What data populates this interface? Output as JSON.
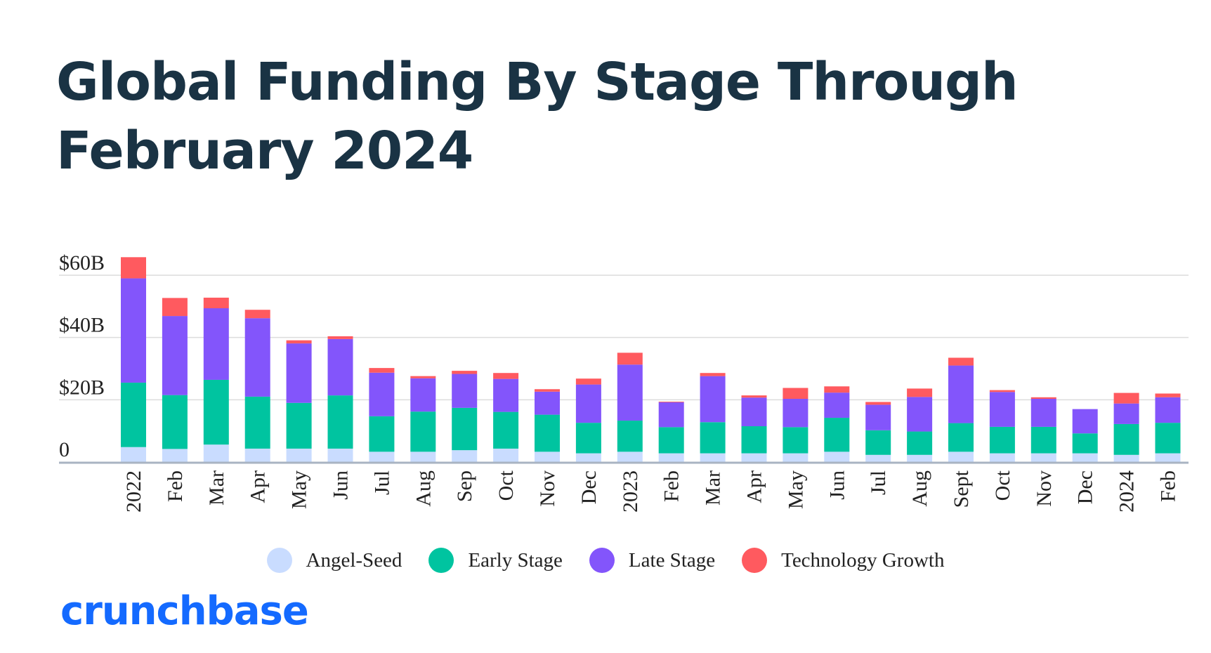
{
  "title_line1": "Global Funding By Stage Through",
  "title_line2": "February 2024",
  "logo_text": "crunchbase",
  "chart_data": {
    "type": "bar",
    "stacked": true,
    "categories": [
      "2022",
      "Feb",
      "Mar",
      "Apr",
      "May",
      "Jun",
      "Jul",
      "Aug",
      "Sep",
      "Oct",
      "Nov",
      "Dec",
      "2023",
      "Feb",
      "Mar",
      "Apr",
      "May",
      "Jun",
      "Jul",
      "Aug",
      "Sept",
      "Oct",
      "Nov",
      "Dec",
      "2024",
      "Feb"
    ],
    "series": [
      {
        "name": "Angel-Seed",
        "color": "#c9dcff",
        "values": [
          4.8,
          4.2,
          5.6,
          4.3,
          4.3,
          4.3,
          3.3,
          3.3,
          3.8,
          4.3,
          3.3,
          2.8,
          3.3,
          2.8,
          2.8,
          2.8,
          2.8,
          3.3,
          2.3,
          2.3,
          3.3,
          2.8,
          2.8,
          2.8,
          2.3,
          2.8
        ]
      },
      {
        "name": "Early Stage",
        "color": "#00c4a0",
        "values": [
          20.7,
          17.3,
          20.8,
          16.7,
          14.7,
          17.1,
          11.4,
          12.9,
          13.6,
          11.8,
          11.9,
          9.8,
          10.0,
          8.4,
          10.0,
          8.7,
          8.4,
          10.9,
          7.9,
          7.5,
          9.2,
          8.5,
          8.5,
          6.4,
          9.9,
          9.8
        ]
      },
      {
        "name": "Late Stage",
        "color": "#8355fb",
        "values": [
          33.5,
          25.4,
          23.0,
          25.2,
          19.1,
          18.1,
          14.0,
          10.7,
          10.9,
          10.6,
          7.4,
          12.3,
          18.0,
          8.0,
          14.8,
          9.2,
          9.1,
          8.1,
          8.2,
          11.1,
          18.5,
          11.2,
          9.0,
          7.8,
          6.6,
          8.2
        ]
      },
      {
        "name": "Technology Growth",
        "color": "#ff5a5f",
        "values": [
          6.8,
          5.8,
          3.4,
          2.7,
          1.0,
          0.9,
          1.5,
          0.7,
          1.0,
          1.9,
          0.8,
          1.9,
          3.8,
          0.2,
          1.0,
          0.7,
          3.5,
          2.0,
          0.9,
          2.7,
          2.5,
          0.6,
          0.5,
          0.0,
          3.4,
          1.2
        ]
      }
    ],
    "yaxis": {
      "ticks": [
        0,
        20,
        40,
        60
      ],
      "tick_labels": [
        "0",
        "$20B",
        "$40B",
        "$60B"
      ],
      "ylim": [
        0,
        66
      ]
    },
    "grid": true,
    "legend": "bottom-center"
  }
}
